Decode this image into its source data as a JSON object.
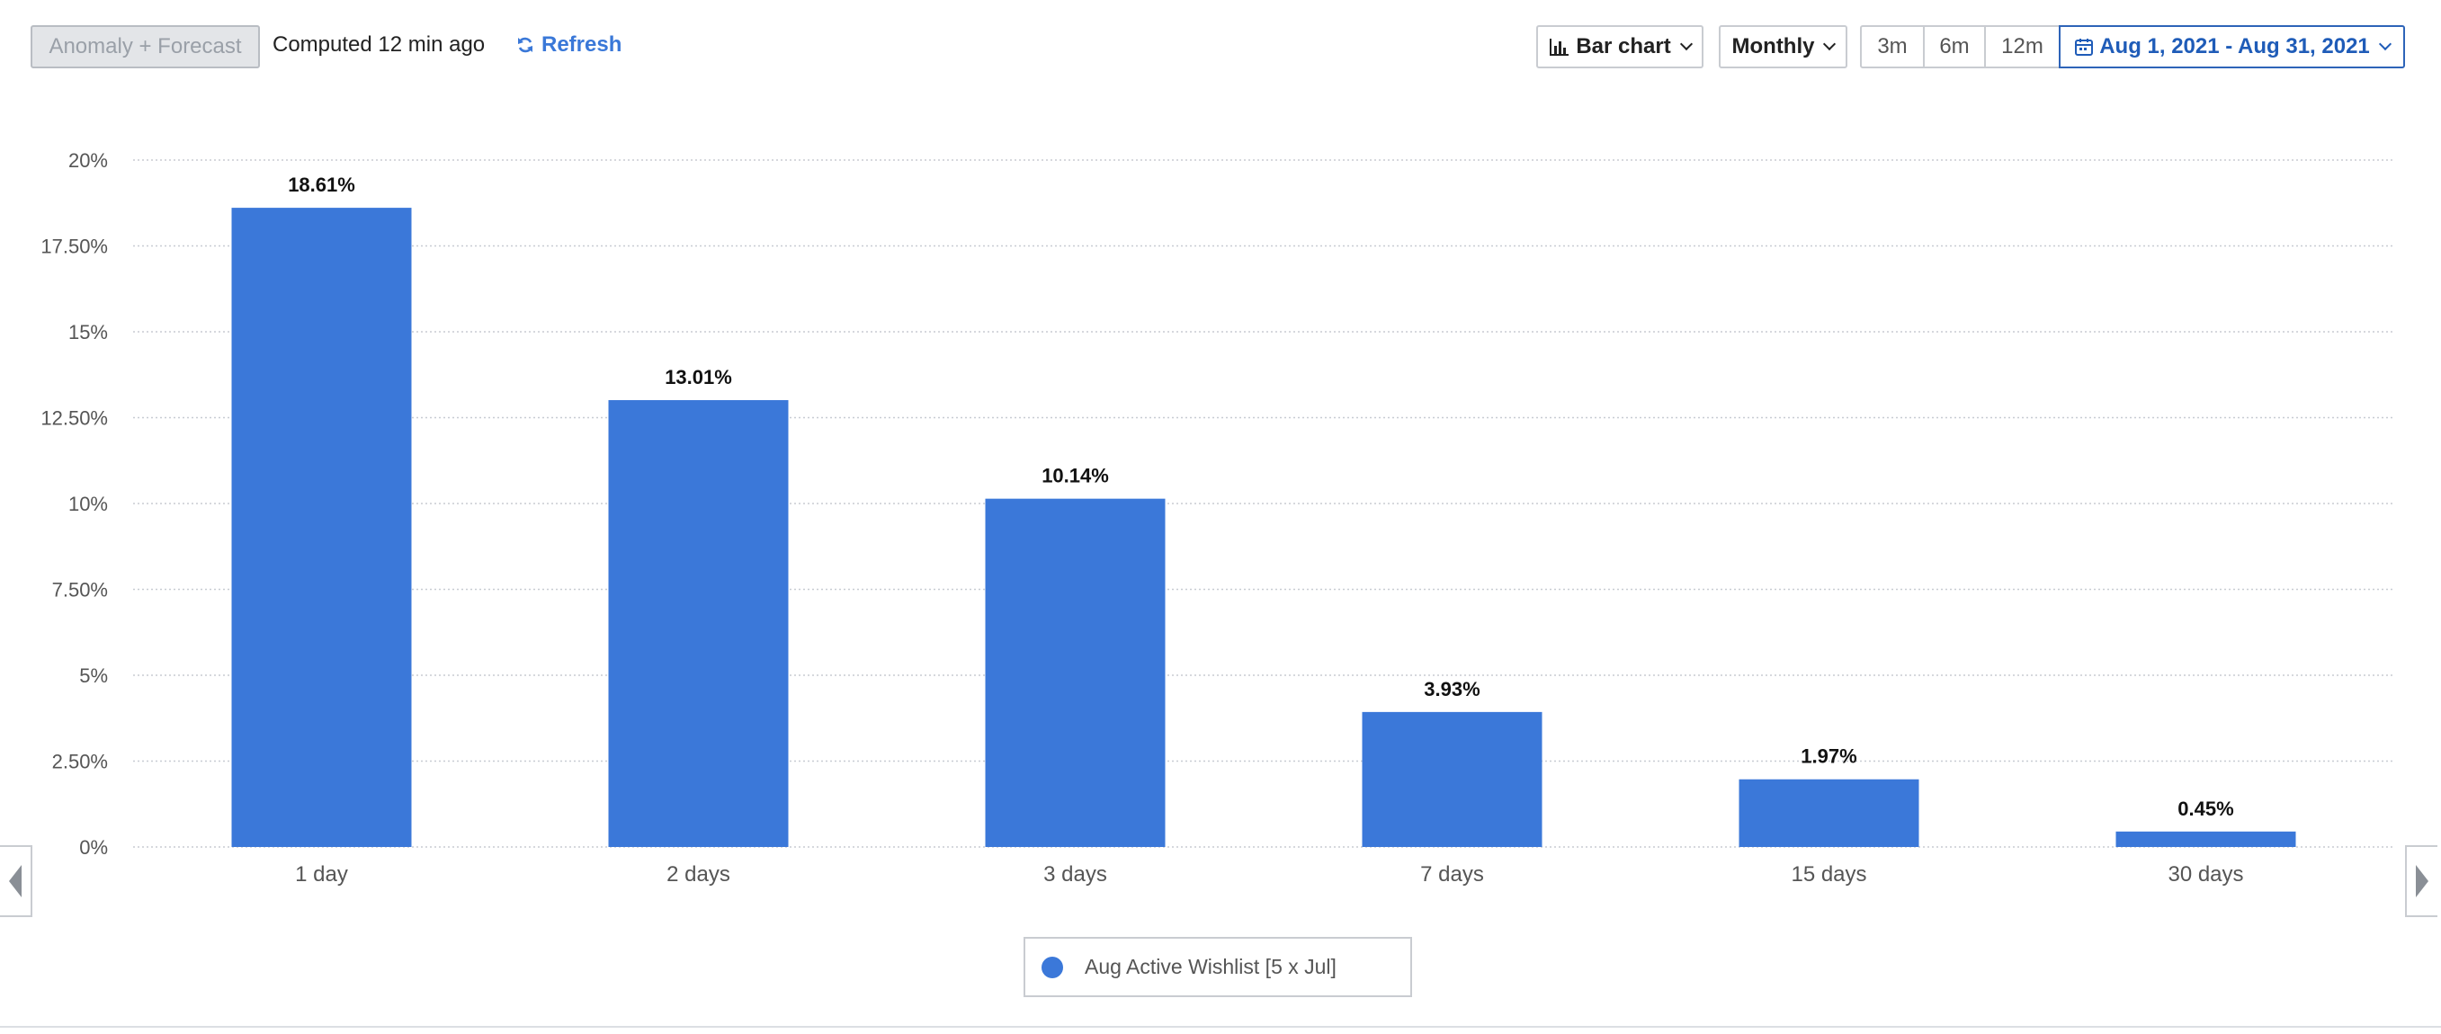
{
  "toolbar": {
    "anomaly_label": "Anomaly + Forecast",
    "computed_text": "Computed 12 min ago",
    "refresh_label": "Refresh",
    "chart_type_label": "Bar chart",
    "interval_label": "Monthly",
    "ranges": [
      "3m",
      "6m",
      "12m"
    ],
    "date_range_label": "Aug 1, 2021 - Aug 31, 2021"
  },
  "icons": {
    "refresh": "refresh-icon",
    "bar_chart": "bar-chart-icon",
    "calendar": "calendar-icon",
    "chevron": "chevron-down-icon"
  },
  "colors": {
    "bar": "#3b78d9",
    "accent": "#3a78d8",
    "date_range": "#1f5cb8"
  },
  "chart_data": {
    "type": "bar",
    "categories": [
      "1 day",
      "2 days",
      "3 days",
      "7 days",
      "15 days",
      "30 days"
    ],
    "series": [
      {
        "name": "Aug Active Wishlist [5 x Jul]",
        "values": [
          18.61,
          13.01,
          10.14,
          3.93,
          1.97,
          0.45
        ],
        "labels": [
          "18.61%",
          "13.01%",
          "10.14%",
          "3.93%",
          "1.97%",
          "0.45%"
        ]
      }
    ],
    "yticks": [
      "0%",
      "2.50%",
      "5%",
      "7.50%",
      "10%",
      "12.50%",
      "15%",
      "17.50%",
      "20%"
    ],
    "ylim": [
      0,
      20
    ],
    "grid": true,
    "legend_position": "bottom-center"
  }
}
